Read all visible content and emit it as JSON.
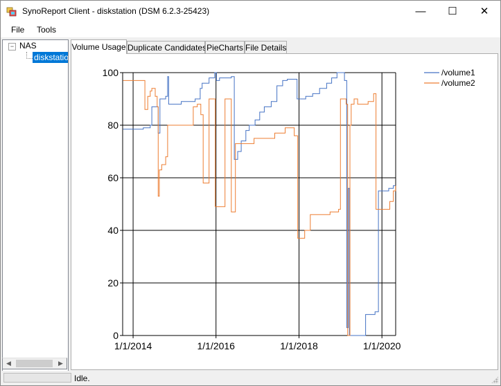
{
  "window": {
    "title": "SynoReport Client - diskstation (DSM 6.2.3-25423)",
    "minimize_glyph": "—",
    "maximize_glyph": "☐",
    "close_glyph": "✕"
  },
  "menu": {
    "items": [
      "File",
      "Tools"
    ]
  },
  "tree": {
    "root": "NAS",
    "child": "diskstation",
    "expander": "−",
    "scroll_left": "◀",
    "scroll_right": "▶"
  },
  "tabs": [
    {
      "label": "Volume Usage",
      "active": true
    },
    {
      "label": "Duplicate Candidates",
      "active": false
    },
    {
      "label": "PieCharts",
      "active": false
    },
    {
      "label": "File Details",
      "active": false
    }
  ],
  "status": {
    "text": "Idle."
  },
  "colors": {
    "volume1": "#4472c4",
    "volume2": "#ed7d31",
    "selection": "#0078d7"
  },
  "chart_data": {
    "type": "line",
    "title": "",
    "xlabel": "",
    "ylabel": "",
    "xlim": [
      "2013-10-01",
      "2020-05-01"
    ],
    "ylim": [
      0,
      100
    ],
    "yticks": [
      0,
      20,
      40,
      60,
      80,
      100
    ],
    "xticks": [
      "1/1/2014",
      "1/1/2016",
      "1/1/2018",
      "1/1/2020"
    ],
    "grid": true,
    "legend": "top-right",
    "series": [
      {
        "name": "/volume1",
        "points": [
          [
            "2013-10-05",
            78.5
          ],
          [
            "2014-01-01",
            78.5
          ],
          [
            "2014-04-01",
            79
          ],
          [
            "2014-06-01",
            80
          ],
          [
            "2014-06-15",
            87
          ],
          [
            "2014-07-15",
            87
          ],
          [
            "2014-08-05",
            87
          ],
          [
            "2014-08-10",
            77
          ],
          [
            "2014-08-20",
            77
          ],
          [
            "2014-08-25",
            90
          ],
          [
            "2014-10-15",
            91
          ],
          [
            "2014-11-01",
            98.5
          ],
          [
            "2014-11-10",
            88
          ],
          [
            "2015-03-01",
            89
          ],
          [
            "2015-07-01",
            90
          ],
          [
            "2015-08-15",
            94
          ],
          [
            "2015-09-01",
            96
          ],
          [
            "2015-11-01",
            98
          ],
          [
            "2015-12-20",
            100
          ],
          [
            "2016-01-05",
            97
          ],
          [
            "2016-02-01",
            98
          ],
          [
            "2016-04-01",
            98
          ],
          [
            "2016-05-15",
            98.5
          ],
          [
            "2016-06-10",
            67
          ],
          [
            "2016-07-10",
            70
          ],
          [
            "2016-08-10",
            74
          ],
          [
            "2016-09-20",
            78
          ],
          [
            "2016-10-20",
            80
          ],
          [
            "2016-12-10",
            82
          ],
          [
            "2017-01-20",
            85
          ],
          [
            "2017-03-01",
            87
          ],
          [
            "2017-05-01",
            89
          ],
          [
            "2017-06-20",
            95
          ],
          [
            "2017-08-10",
            97
          ],
          [
            "2017-09-20",
            97.5
          ],
          [
            "2017-11-10",
            97.5
          ],
          [
            "2017-12-15",
            90
          ],
          [
            "2018-03-01",
            91
          ],
          [
            "2018-05-01",
            92
          ],
          [
            "2018-07-01",
            94
          ],
          [
            "2018-09-01",
            96
          ],
          [
            "2018-10-15",
            98
          ],
          [
            "2018-12-01",
            100
          ],
          [
            "2019-01-25",
            100
          ],
          [
            "2019-02-05",
            97
          ],
          [
            "2019-02-25",
            3
          ],
          [
            "2019-03-10",
            56
          ],
          [
            "2019-03-20",
            0
          ],
          [
            "2019-07-10",
            0
          ],
          [
            "2019-08-10",
            8
          ],
          [
            "2019-11-01",
            9
          ],
          [
            "2019-12-01",
            55
          ],
          [
            "2020-03-01",
            56
          ],
          [
            "2020-04-10",
            57
          ],
          [
            "2020-04-30",
            57
          ]
        ]
      },
      {
        "name": "/volume2",
        "points": [
          [
            "2013-10-05",
            97
          ],
          [
            "2014-03-01",
            97
          ],
          [
            "2014-04-01",
            97
          ],
          [
            "2014-04-15",
            86
          ],
          [
            "2014-05-10",
            91
          ],
          [
            "2014-06-01",
            93
          ],
          [
            "2014-06-15",
            94
          ],
          [
            "2014-07-15",
            91
          ],
          [
            "2014-08-01",
            87
          ],
          [
            "2014-08-10",
            53
          ],
          [
            "2014-08-20",
            63
          ],
          [
            "2014-09-10",
            65
          ],
          [
            "2014-10-15",
            68
          ],
          [
            "2014-11-01",
            80
          ],
          [
            "2015-06-01",
            80
          ],
          [
            "2015-06-15",
            87
          ],
          [
            "2015-07-20",
            88
          ],
          [
            "2015-08-20",
            84
          ],
          [
            "2015-09-10",
            58
          ],
          [
            "2015-10-15",
            58
          ],
          [
            "2015-11-01",
            90
          ],
          [
            "2015-12-10",
            90
          ],
          [
            "2015-12-25",
            49
          ],
          [
            "2016-03-01",
            49
          ],
          [
            "2016-03-20",
            90
          ],
          [
            "2016-05-01",
            90
          ],
          [
            "2016-05-15",
            47
          ],
          [
            "2016-06-10",
            47
          ],
          [
            "2016-06-20",
            73
          ],
          [
            "2016-12-01",
            75
          ],
          [
            "2017-06-01",
            77
          ],
          [
            "2017-09-01",
            79
          ],
          [
            "2017-10-01",
            79
          ],
          [
            "2017-11-20",
            76
          ],
          [
            "2017-12-20",
            37
          ],
          [
            "2018-02-01",
            37
          ],
          [
            "2018-02-20",
            40
          ],
          [
            "2018-04-10",
            46
          ],
          [
            "2018-10-01",
            47
          ],
          [
            "2018-12-15",
            48
          ],
          [
            "2019-01-01",
            90
          ],
          [
            "2019-02-20",
            88
          ],
          [
            "2019-03-05",
            0
          ],
          [
            "2019-03-25",
            80
          ],
          [
            "2019-04-05",
            88
          ],
          [
            "2019-05-01",
            90
          ],
          [
            "2019-06-01",
            88
          ],
          [
            "2019-09-01",
            89
          ],
          [
            "2019-10-20",
            92
          ],
          [
            "2019-11-10",
            48
          ],
          [
            "2020-02-01",
            48
          ],
          [
            "2020-03-10",
            51
          ],
          [
            "2020-04-10",
            55
          ],
          [
            "2020-04-30",
            57
          ]
        ]
      }
    ]
  }
}
